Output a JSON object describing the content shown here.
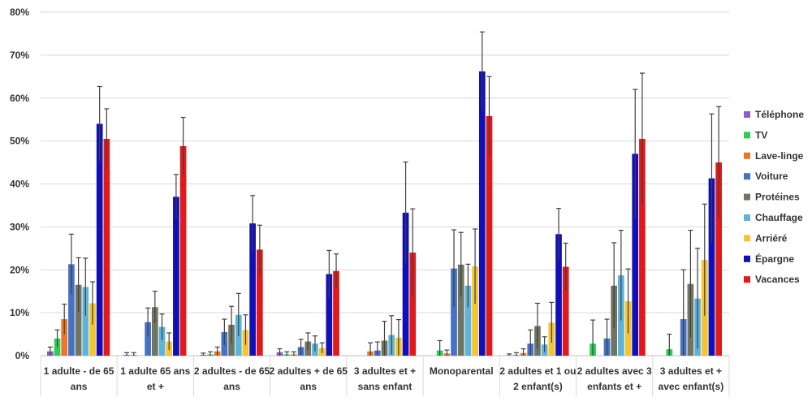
{
  "chart_data": {
    "type": "bar",
    "ylim": [
      0,
      80
    ],
    "yticks": [
      "0%",
      "10%",
      "20%",
      "30%",
      "40%",
      "50%",
      "60%",
      "70%",
      "80%"
    ],
    "grid": true,
    "legend_position": "right",
    "categories": [
      [
        "1 adulte - de 65",
        "ans"
      ],
      [
        "1 adulte 65 ans",
        "et +"
      ],
      [
        "2 adultes - de 65",
        "ans"
      ],
      [
        "2 adultes + de 65",
        "ans"
      ],
      [
        "3 adultes et +",
        "sans enfant"
      ],
      [
        "Monoparental"
      ],
      [
        "2 adultes et 1 ou",
        "2 enfant(s)"
      ],
      [
        "2 adultes avec 3",
        "enfants et +"
      ],
      [
        "3 adultes et +",
        "avec enfant(s)"
      ]
    ],
    "series": [
      {
        "name": "Téléphone",
        "color": "#8b5fc7",
        "values": [
          1.0,
          0.2,
          0.2,
          0.8,
          0.0,
          0.0,
          0.1,
          0.0,
          0.0
        ],
        "errors": [
          1.0,
          0.5,
          0.4,
          0.8,
          0.0,
          0.0,
          0.3,
          0.0,
          0.0
        ]
      },
      {
        "name": "TV",
        "color": "#2ecc55",
        "values": [
          4.0,
          0.2,
          0.3,
          0.3,
          0.0,
          1.2,
          0.2,
          2.8,
          1.5
        ],
        "errors": [
          2.0,
          0.5,
          0.6,
          0.6,
          0.0,
          2.3,
          0.5,
          5.5,
          3.5
        ]
      },
      {
        "name": "Lave-linge",
        "color": "#e8762b",
        "values": [
          8.5,
          0.0,
          1.0,
          0.3,
          1.0,
          0.5,
          0.6,
          0.0,
          0.0
        ],
        "errors": [
          3.5,
          0.0,
          1.0,
          0.6,
          2.0,
          0.8,
          1.0,
          0.0,
          0.0
        ]
      },
      {
        "name": "Voiture",
        "color": "#4472c4",
        "values": [
          21.3,
          7.8,
          5.5,
          2.0,
          1.2,
          20.3,
          2.8,
          4.0,
          8.5
        ],
        "errors": [
          7.0,
          3.3,
          3.0,
          1.8,
          2.0,
          9.0,
          3.2,
          4.5,
          11.5
        ]
      },
      {
        "name": "Protéines",
        "color": "#6f7562",
        "values": [
          16.5,
          11.3,
          7.2,
          3.3,
          3.5,
          21.2,
          6.9,
          16.3,
          16.7
        ],
        "errors": [
          6.3,
          3.7,
          4.3,
          2.0,
          4.5,
          7.5,
          5.3,
          10.0,
          12.5
        ]
      },
      {
        "name": "Chauffage",
        "color": "#5fb3d9",
        "values": [
          16.0,
          6.7,
          9.5,
          2.8,
          4.8,
          16.3,
          2.6,
          18.7,
          13.3
        ],
        "errors": [
          6.7,
          3.0,
          5.0,
          1.8,
          4.5,
          5.0,
          1.8,
          10.5,
          11.7
        ]
      },
      {
        "name": "Arriéré",
        "color": "#f5c431",
        "values": [
          12.2,
          3.3,
          6.0,
          1.8,
          4.2,
          20.8,
          7.7,
          12.7,
          22.3
        ],
        "errors": [
          5.0,
          2.0,
          3.5,
          1.2,
          4.2,
          8.7,
          4.7,
          7.5,
          13.0
        ]
      },
      {
        "name": "Épargne",
        "color": "#1010b8",
        "values": [
          54.0,
          37.0,
          30.8,
          19.0,
          33.3,
          66.2,
          28.3,
          47.0,
          41.3
        ],
        "errors": [
          8.7,
          5.2,
          6.5,
          5.5,
          11.8,
          9.2,
          6.0,
          15.0,
          15.0
        ]
      },
      {
        "name": "Vacances",
        "color": "#e01a1a",
        "values": [
          50.5,
          48.8,
          24.7,
          19.7,
          24.0,
          55.8,
          20.7,
          50.5,
          45.0
        ],
        "errors": [
          7.0,
          6.7,
          5.7,
          4.0,
          10.2,
          9.2,
          5.5,
          15.3,
          13.0
        ]
      }
    ]
  }
}
